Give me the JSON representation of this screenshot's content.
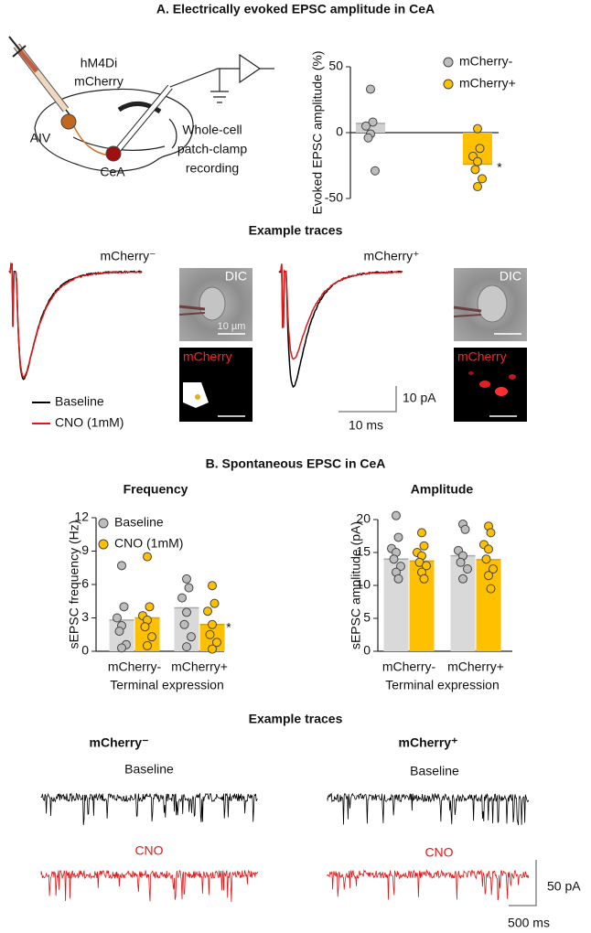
{
  "chart_data": [
    {
      "type": "bar",
      "ylabel": "Evoked EPSC amplitude (%)",
      "ylim": [
        -50,
        50
      ],
      "yticks": [
        -50,
        0,
        50
      ],
      "annotation": "*",
      "show_legend": true,
      "series": [
        {
          "name": "mCherry-",
          "color": "#d0d0d0",
          "values": [
            7
          ],
          "points": [
            [
              33,
              8,
              5,
              -1,
              -4,
              -29
            ]
          ]
        },
        {
          "name": "mCherry+",
          "color": "#ffc000",
          "values": [
            -24
          ],
          "points": [
            [
              3,
              -12,
              -18,
              -22,
              -28,
              -35,
              -41
            ]
          ]
        }
      ]
    },
    {
      "type": "bar",
      "title": "Frequency",
      "ylabel": "sEPSC frequency (Hz)",
      "xlabel": "Terminal expression",
      "ylim": [
        0,
        12
      ],
      "yticks": [
        0,
        3,
        6,
        9,
        12
      ],
      "annotation": "*",
      "show_legend": true,
      "categories": [
        "mCherry-",
        "mCherry+"
      ],
      "series": [
        {
          "name": "Baseline",
          "color": "#d9d9d9",
          "values": [
            2.8,
            3.9
          ],
          "points": [
            [
              7.7,
              4.0,
              3.0,
              2.3,
              1.8,
              0.6,
              0.3
            ],
            [
              6.5,
              5.7,
              4.8,
              3.5,
              2.4,
              1.3,
              0.4
            ]
          ]
        },
        {
          "name": "CNO (1mM)",
          "color": "#ffc000",
          "values": [
            3.0,
            2.4
          ],
          "points": [
            [
              8.5,
              4.0,
              3.2,
              2.8,
              2.2,
              1.3,
              0.5
            ],
            [
              5.9,
              4.3,
              3.6,
              2.4,
              1.5,
              0.8,
              0.2
            ]
          ]
        }
      ]
    },
    {
      "type": "bar",
      "title": "Amplitude",
      "ylabel": "sEPSC amplitude (pA)",
      "xlabel": "Terminal expression",
      "ylim": [
        0,
        20
      ],
      "yticks": [
        0,
        5,
        10,
        15,
        20
      ],
      "show_legend": false,
      "categories": [
        "mCherry-",
        "mCherry+"
      ],
      "series": [
        {
          "name": "Baseline",
          "color": "#d9d9d9",
          "values": [
            14.0,
            14.5
          ],
          "points": [
            [
              20.6,
              17.3,
              15.6,
              15.0,
              14.0,
              12.9,
              12.0,
              11.0
            ],
            [
              19.3,
              18.5,
              15.3,
              14.5,
              13.5,
              12.5,
              11.0
            ]
          ]
        },
        {
          "name": "CNO (1mM)",
          "color": "#ffc000",
          "values": [
            13.7,
            13.9
          ],
          "points": [
            [
              18.0,
              16.0,
              15.0,
              14.5,
              13.5,
              13.0,
              12.0,
              11.0
            ],
            [
              19.0,
              18.0,
              16.2,
              15.5,
              14.0,
              12.5,
              11.5,
              9.5
            ]
          ]
        }
      ]
    }
  ],
  "panel_a": {
    "title": "A. Electrically evoked EPSC amplitude in CeA",
    "schematic": {
      "virus": "hM4Di",
      "reporter": "mCherry",
      "source": "AIV",
      "target": "CeA",
      "recording": [
        "Whole-cell",
        "patch-clamp",
        "recording"
      ]
    },
    "traces_title": "Example traces",
    "left_group": "mCherry⁻",
    "right_group": "mCherry⁺",
    "legend": [
      "Baseline",
      "CNO (1mM)"
    ],
    "scale_y": "10 pA",
    "scale_x": "10 ms",
    "image_labels": [
      "DIC",
      "mCherry"
    ],
    "image_scale": "10 µm"
  },
  "panel_b": {
    "title": "B. Spontaneous EPSC in CeA",
    "traces_title": "Example traces",
    "left_group": "mCherry⁻",
    "right_group": "mCherry⁺",
    "baseline": "Baseline",
    "cno": "CNO",
    "scale_y": "50 pA",
    "scale_x": "500 ms"
  }
}
